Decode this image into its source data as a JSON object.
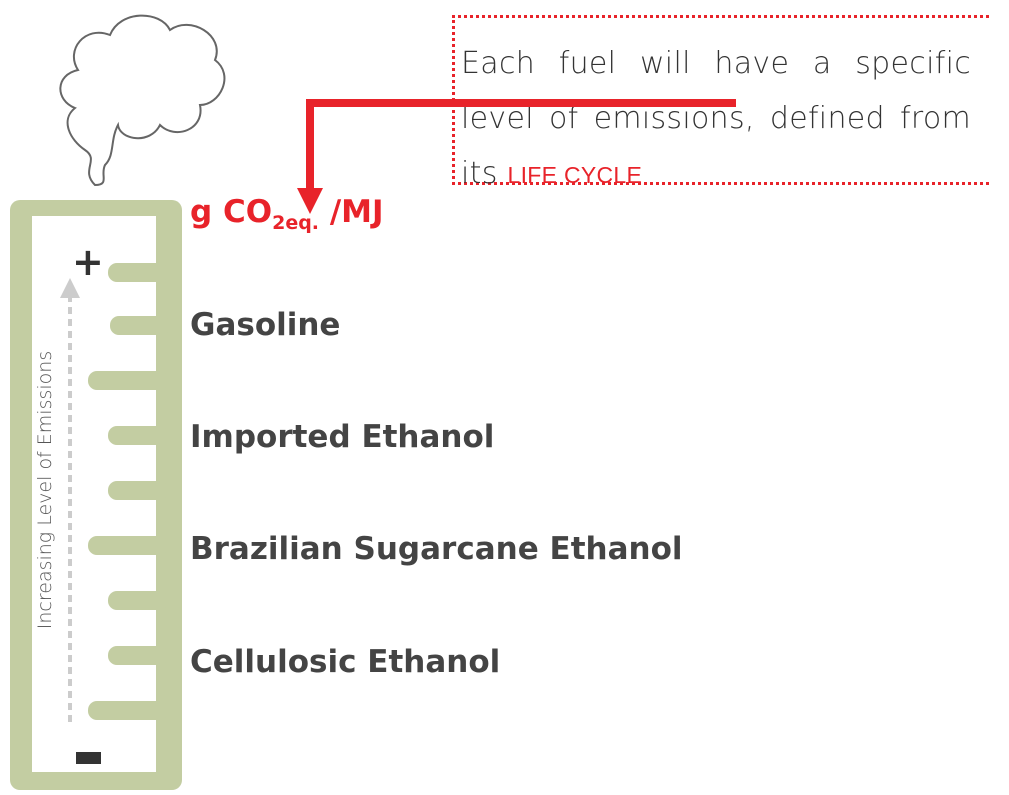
{
  "callout": {
    "text": "Each fuel will have a specific level of emissions, defined from its",
    "highlight": "LIFE CYCLE"
  },
  "unit": {
    "prefix": "g CO",
    "subscript": "2eq.",
    "suffix": "/MJ"
  },
  "scale": {
    "label": "Increasing Level of Emissions",
    "top": "+"
  },
  "fuels": [
    "Gasoline",
    "Imported Ethanol",
    "Brazilian Sugarcane Ethanol",
    "Cellulosic Ethanol"
  ]
}
